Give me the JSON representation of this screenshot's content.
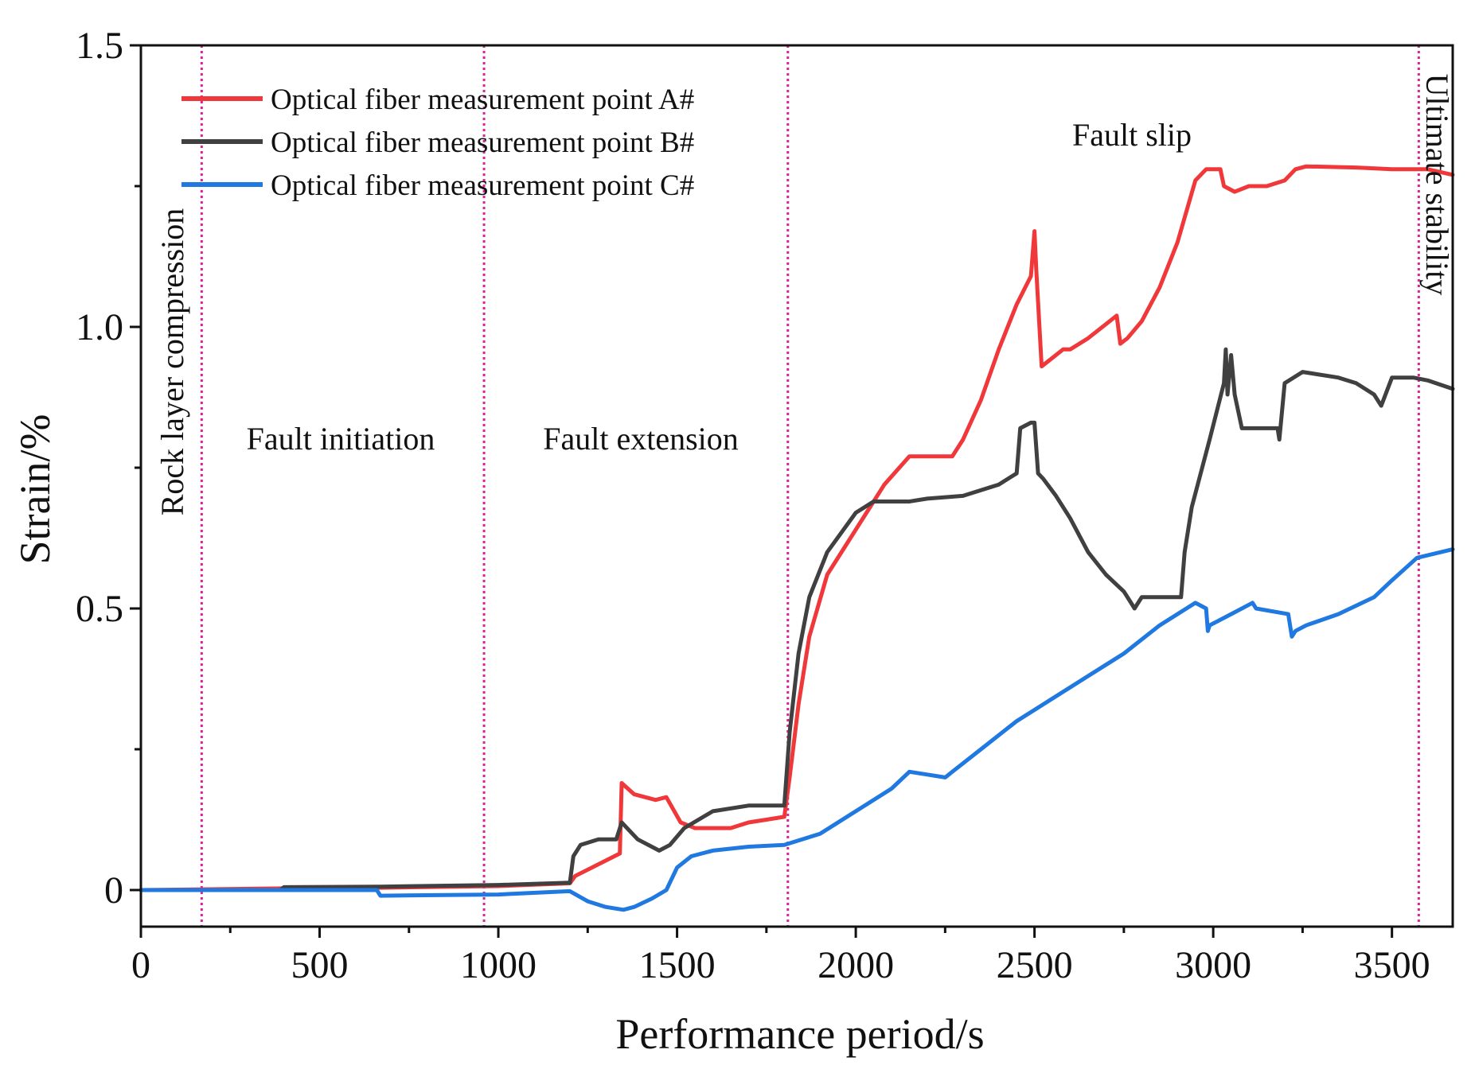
{
  "chart_data": {
    "type": "line",
    "title": "",
    "xlabel": "Performance period/s",
    "ylabel": "Strain/%",
    "xlim": [
      0,
      3670
    ],
    "ylim": [
      -0.065,
      1.5
    ],
    "x_ticks": [
      0,
      500,
      1000,
      1500,
      2000,
      2500,
      3000,
      3500
    ],
    "x_tick_labels": [
      "0",
      "500",
      "1000",
      "1500",
      "2000",
      "2500",
      "3000",
      "3500"
    ],
    "y_ticks": [
      0,
      0.5,
      1.0,
      1.5
    ],
    "y_tick_labels": [
      "0",
      "0.5",
      "1.0",
      "1.5"
    ],
    "y_minor_ticks": [
      0.25,
      0.75,
      1.25
    ],
    "legend_position": "top-left",
    "stage_boundaries": [
      170,
      960,
      1810,
      3575
    ],
    "stage_labels": [
      "Rock layer compression",
      "Fault initiation",
      "Fault extension",
      "Fault slip",
      "Ultimate stability"
    ],
    "series": [
      {
        "name": "Optical fiber measurement point A#",
        "color": "#f0383b",
        "x": [
          0,
          400,
          670,
          1000,
          1200,
          1215,
          1340,
          1345,
          1380,
          1440,
          1470,
          1510,
          1550,
          1650,
          1700,
          1750,
          1800,
          1815,
          1840,
          1870,
          1920,
          2000,
          2080,
          2150,
          2270,
          2300,
          2350,
          2400,
          2450,
          2490,
          2500,
          2505,
          2520,
          2540,
          2580,
          2600,
          2650,
          2730,
          2740,
          2760,
          2800,
          2850,
          2900,
          2950,
          2980,
          3020,
          3030,
          3060,
          3100,
          3150,
          3200,
          3230,
          3260,
          3400,
          3500,
          3600,
          3670
        ],
        "y": [
          0,
          0.003,
          0.004,
          0.007,
          0.012,
          0.025,
          0.065,
          0.19,
          0.17,
          0.16,
          0.165,
          0.12,
          0.11,
          0.11,
          0.12,
          0.125,
          0.13,
          0.2,
          0.33,
          0.45,
          0.56,
          0.64,
          0.72,
          0.77,
          0.77,
          0.8,
          0.87,
          0.96,
          1.04,
          1.09,
          1.17,
          1.1,
          0.93,
          0.94,
          0.96,
          0.96,
          0.98,
          1.02,
          0.97,
          0.98,
          1.01,
          1.07,
          1.15,
          1.26,
          1.28,
          1.28,
          1.25,
          1.24,
          1.25,
          1.25,
          1.26,
          1.28,
          1.285,
          1.283,
          1.28,
          1.28,
          1.27
        ]
      },
      {
        "name": "Optical fiber measurement point B#",
        "color": "#404040",
        "x": [
          0,
          390,
          400,
          670,
          1000,
          1200,
          1210,
          1230,
          1280,
          1330,
          1345,
          1390,
          1450,
          1480,
          1520,
          1600,
          1700,
          1800,
          1815,
          1840,
          1870,
          1920,
          2000,
          2050,
          2150,
          2200,
          2300,
          2400,
          2450,
          2460,
          2490,
          2500,
          2510,
          2525,
          2560,
          2600,
          2650,
          2700,
          2750,
          2770,
          2780,
          2800,
          2850,
          2910,
          2920,
          2940,
          2990,
          3030,
          3035,
          3040,
          3050,
          3060,
          3080,
          3180,
          3185,
          3200,
          3250,
          3350,
          3400,
          3450,
          3470,
          3500,
          3560,
          3600,
          3670
        ],
        "y": [
          0,
          0.0,
          0.005,
          0.006,
          0.009,
          0.013,
          0.06,
          0.08,
          0.09,
          0.09,
          0.12,
          0.09,
          0.07,
          0.08,
          0.11,
          0.14,
          0.15,
          0.15,
          0.28,
          0.42,
          0.52,
          0.6,
          0.67,
          0.69,
          0.69,
          0.695,
          0.7,
          0.72,
          0.74,
          0.82,
          0.83,
          0.83,
          0.74,
          0.73,
          0.7,
          0.66,
          0.6,
          0.56,
          0.53,
          0.51,
          0.5,
          0.52,
          0.52,
          0.52,
          0.6,
          0.68,
          0.8,
          0.9,
          0.96,
          0.88,
          0.95,
          0.88,
          0.82,
          0.82,
          0.8,
          0.9,
          0.92,
          0.91,
          0.9,
          0.88,
          0.86,
          0.91,
          0.91,
          0.905,
          0.89
        ]
      },
      {
        "name": "Optical fiber measurement point C#",
        "color": "#1f79e0",
        "x": [
          0,
          660,
          670,
          1000,
          1200,
          1250,
          1300,
          1350,
          1380,
          1430,
          1470,
          1500,
          1540,
          1600,
          1700,
          1800,
          1900,
          2000,
          2100,
          2150,
          2200,
          2250,
          2270,
          2350,
          2450,
          2550,
          2650,
          2750,
          2850,
          2950,
          2980,
          2985,
          2990,
          3050,
          3110,
          3120,
          3210,
          3220,
          3230,
          3260,
          3350,
          3450,
          3500,
          3570,
          3670
        ],
        "y": [
          0,
          0.0,
          -0.01,
          -0.008,
          -0.002,
          -0.02,
          -0.03,
          -0.035,
          -0.03,
          -0.015,
          0.0,
          0.04,
          0.06,
          0.07,
          0.077,
          0.08,
          0.1,
          0.14,
          0.18,
          0.21,
          0.205,
          0.2,
          0.21,
          0.25,
          0.3,
          0.34,
          0.38,
          0.42,
          0.47,
          0.51,
          0.5,
          0.46,
          0.47,
          0.49,
          0.51,
          0.5,
          0.49,
          0.45,
          0.46,
          0.47,
          0.49,
          0.52,
          0.55,
          0.59,
          0.605
        ]
      }
    ]
  }
}
